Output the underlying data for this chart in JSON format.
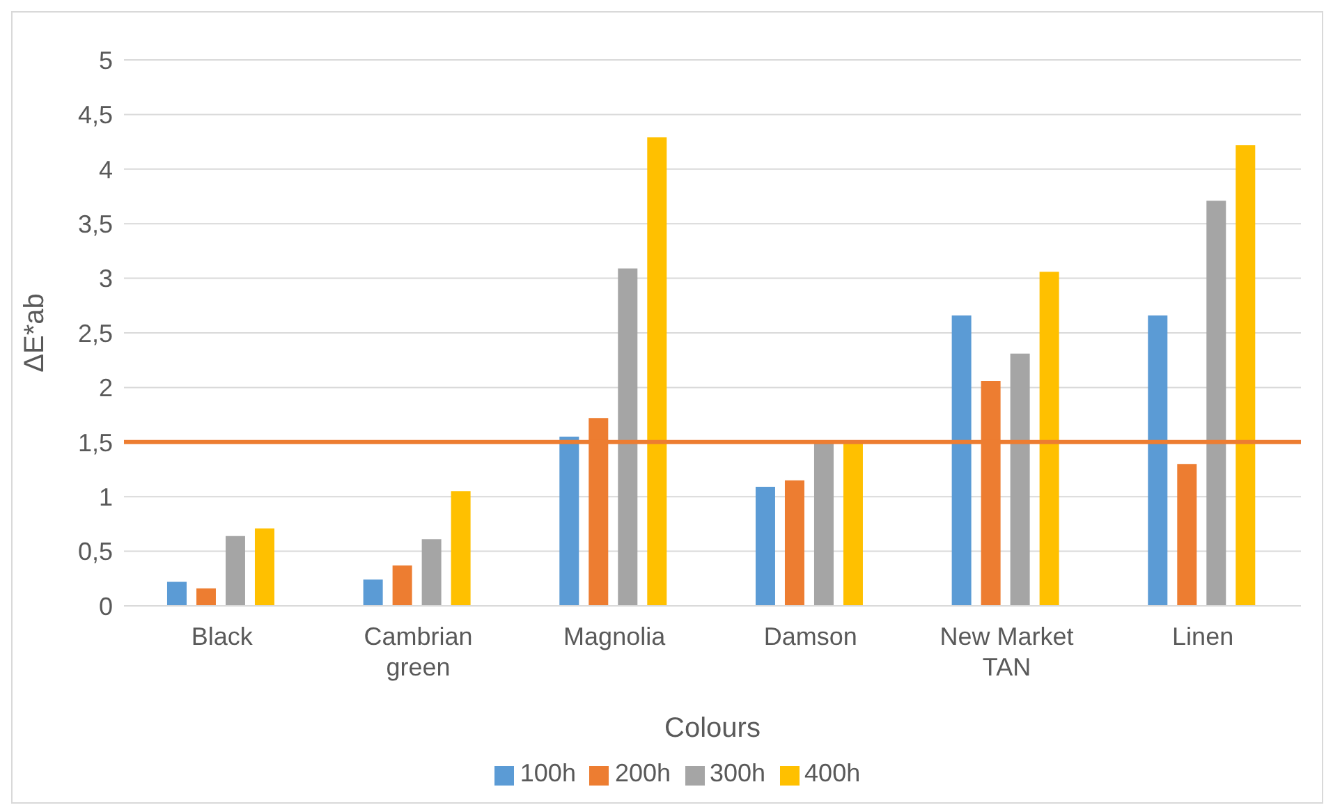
{
  "chart_data": {
    "type": "bar",
    "xlabel": "Colours",
    "ylabel": "ΔE*ab",
    "categories": [
      "Black",
      "Cambrian green",
      "Magnolia",
      "Damson",
      "New Market TAN",
      "Linen"
    ],
    "series": [
      {
        "name": "100h",
        "color": "#5b9bd5",
        "values": [
          0.22,
          0.24,
          1.55,
          1.09,
          2.66,
          2.66
        ]
      },
      {
        "name": "200h",
        "color": "#ed7d31",
        "values": [
          0.16,
          0.37,
          1.72,
          1.15,
          2.06,
          1.3
        ]
      },
      {
        "name": "300h",
        "color": "#a5a5a5",
        "values": [
          0.64,
          0.61,
          3.09,
          1.49,
          2.31,
          3.71
        ]
      },
      {
        "name": "400h",
        "color": "#ffc000",
        "values": [
          0.71,
          1.05,
          4.29,
          1.49,
          3.06,
          4.22
        ]
      }
    ],
    "ylim": [
      0,
      5
    ],
    "yticks": [
      0,
      {
        "value": 0.5,
        "label": "0,5"
      },
      1,
      {
        "value": 1.5,
        "label": "1,5"
      },
      2,
      {
        "value": 2.5,
        "label": "2,5"
      },
      3,
      {
        "value": 3.5,
        "label": "3,5"
      },
      4,
      {
        "value": 4.5,
        "label": "4,5"
      },
      5
    ],
    "ref_lines": [
      {
        "axis": "y",
        "value": 1.5,
        "color": "#ed7d31"
      }
    ],
    "grid": "y",
    "legend": "bottom"
  }
}
